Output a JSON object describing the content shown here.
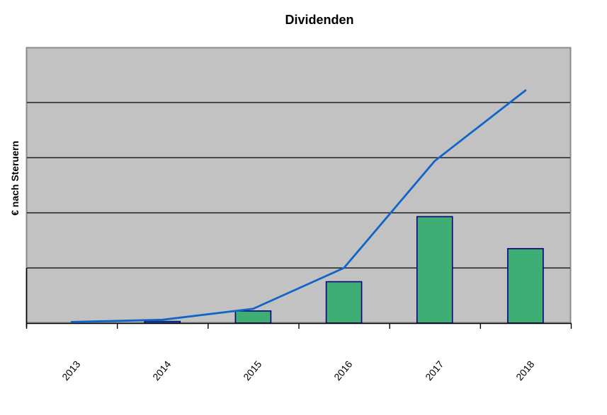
{
  "chart_data": {
    "type": "combo",
    "title": "Dividenden",
    "ylabel": "€ nach Steruern",
    "xlabel": "",
    "categories": [
      "2013",
      "2014",
      "2015",
      "2016",
      "2017",
      "2018"
    ],
    "series": [
      {
        "id": "bar-series",
        "type": "bar",
        "values": [
          0,
          0.03,
          0.22,
          0.75,
          1.93,
          1.35
        ]
      },
      {
        "id": "line-series",
        "type": "line",
        "values": [
          0.02,
          0.06,
          0.26,
          1.0,
          2.94,
          4.22
        ]
      }
    ],
    "value_axis": {
      "min": 0,
      "max": 5,
      "tick_labels_visible": false,
      "values_unit": "relative (one horizontal gridline interval = 1)",
      "gridline_count": 4
    },
    "legend_position": "none",
    "grid": true
  },
  "colors": {
    "page_background": "#ffffff",
    "plot_background": "#c2c2c2",
    "plot_border": "#8a8a8a",
    "gridline": "#000000",
    "axis": "#000000",
    "bar_fill": "#3fae75",
    "bar_border": "#000080",
    "line": "#1164c8",
    "text": "#000000"
  }
}
